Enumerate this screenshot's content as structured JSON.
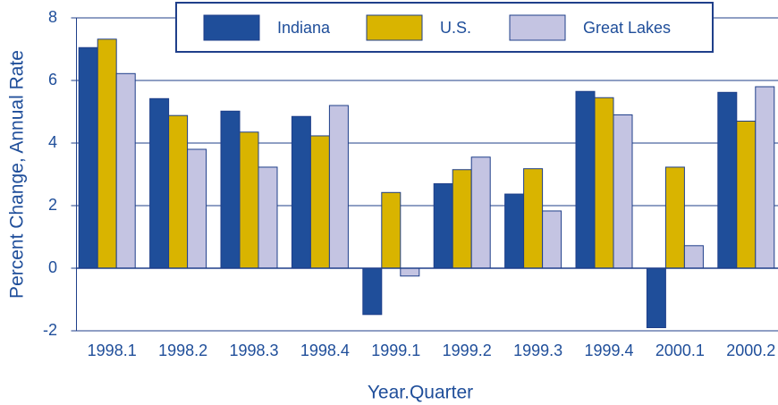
{
  "chart_data": {
    "type": "bar",
    "ylabel": "Percent Change, Annual Rate",
    "xlabel": "Year.Quarter",
    "categories": [
      "1998.1",
      "1998.2",
      "1998.3",
      "1998.4",
      "1999.1",
      "1999.2",
      "1999.3",
      "1999.4",
      "2000.1",
      "2000.2"
    ],
    "series": [
      {
        "name": "Indiana",
        "color": "#1f4e9a",
        "values": [
          7.05,
          5.42,
          5.02,
          4.85,
          -1.48,
          2.7,
          2.37,
          5.65,
          -1.9,
          5.62
        ]
      },
      {
        "name": "U.S.",
        "color": "#d9b400",
        "values": [
          7.32,
          4.88,
          4.35,
          4.23,
          2.42,
          3.15,
          3.18,
          5.45,
          3.23,
          4.7
        ]
      },
      {
        "name": "Great Lakes",
        "color": "#c4c4e2",
        "values": [
          6.22,
          3.8,
          3.23,
          5.2,
          -0.25,
          3.55,
          1.83,
          4.9,
          0.72,
          5.8
        ]
      }
    ],
    "ylim": [
      -2,
      8
    ],
    "yticks": [
      -2,
      0,
      2,
      4,
      6,
      8
    ],
    "grid": true,
    "legend": "top"
  }
}
